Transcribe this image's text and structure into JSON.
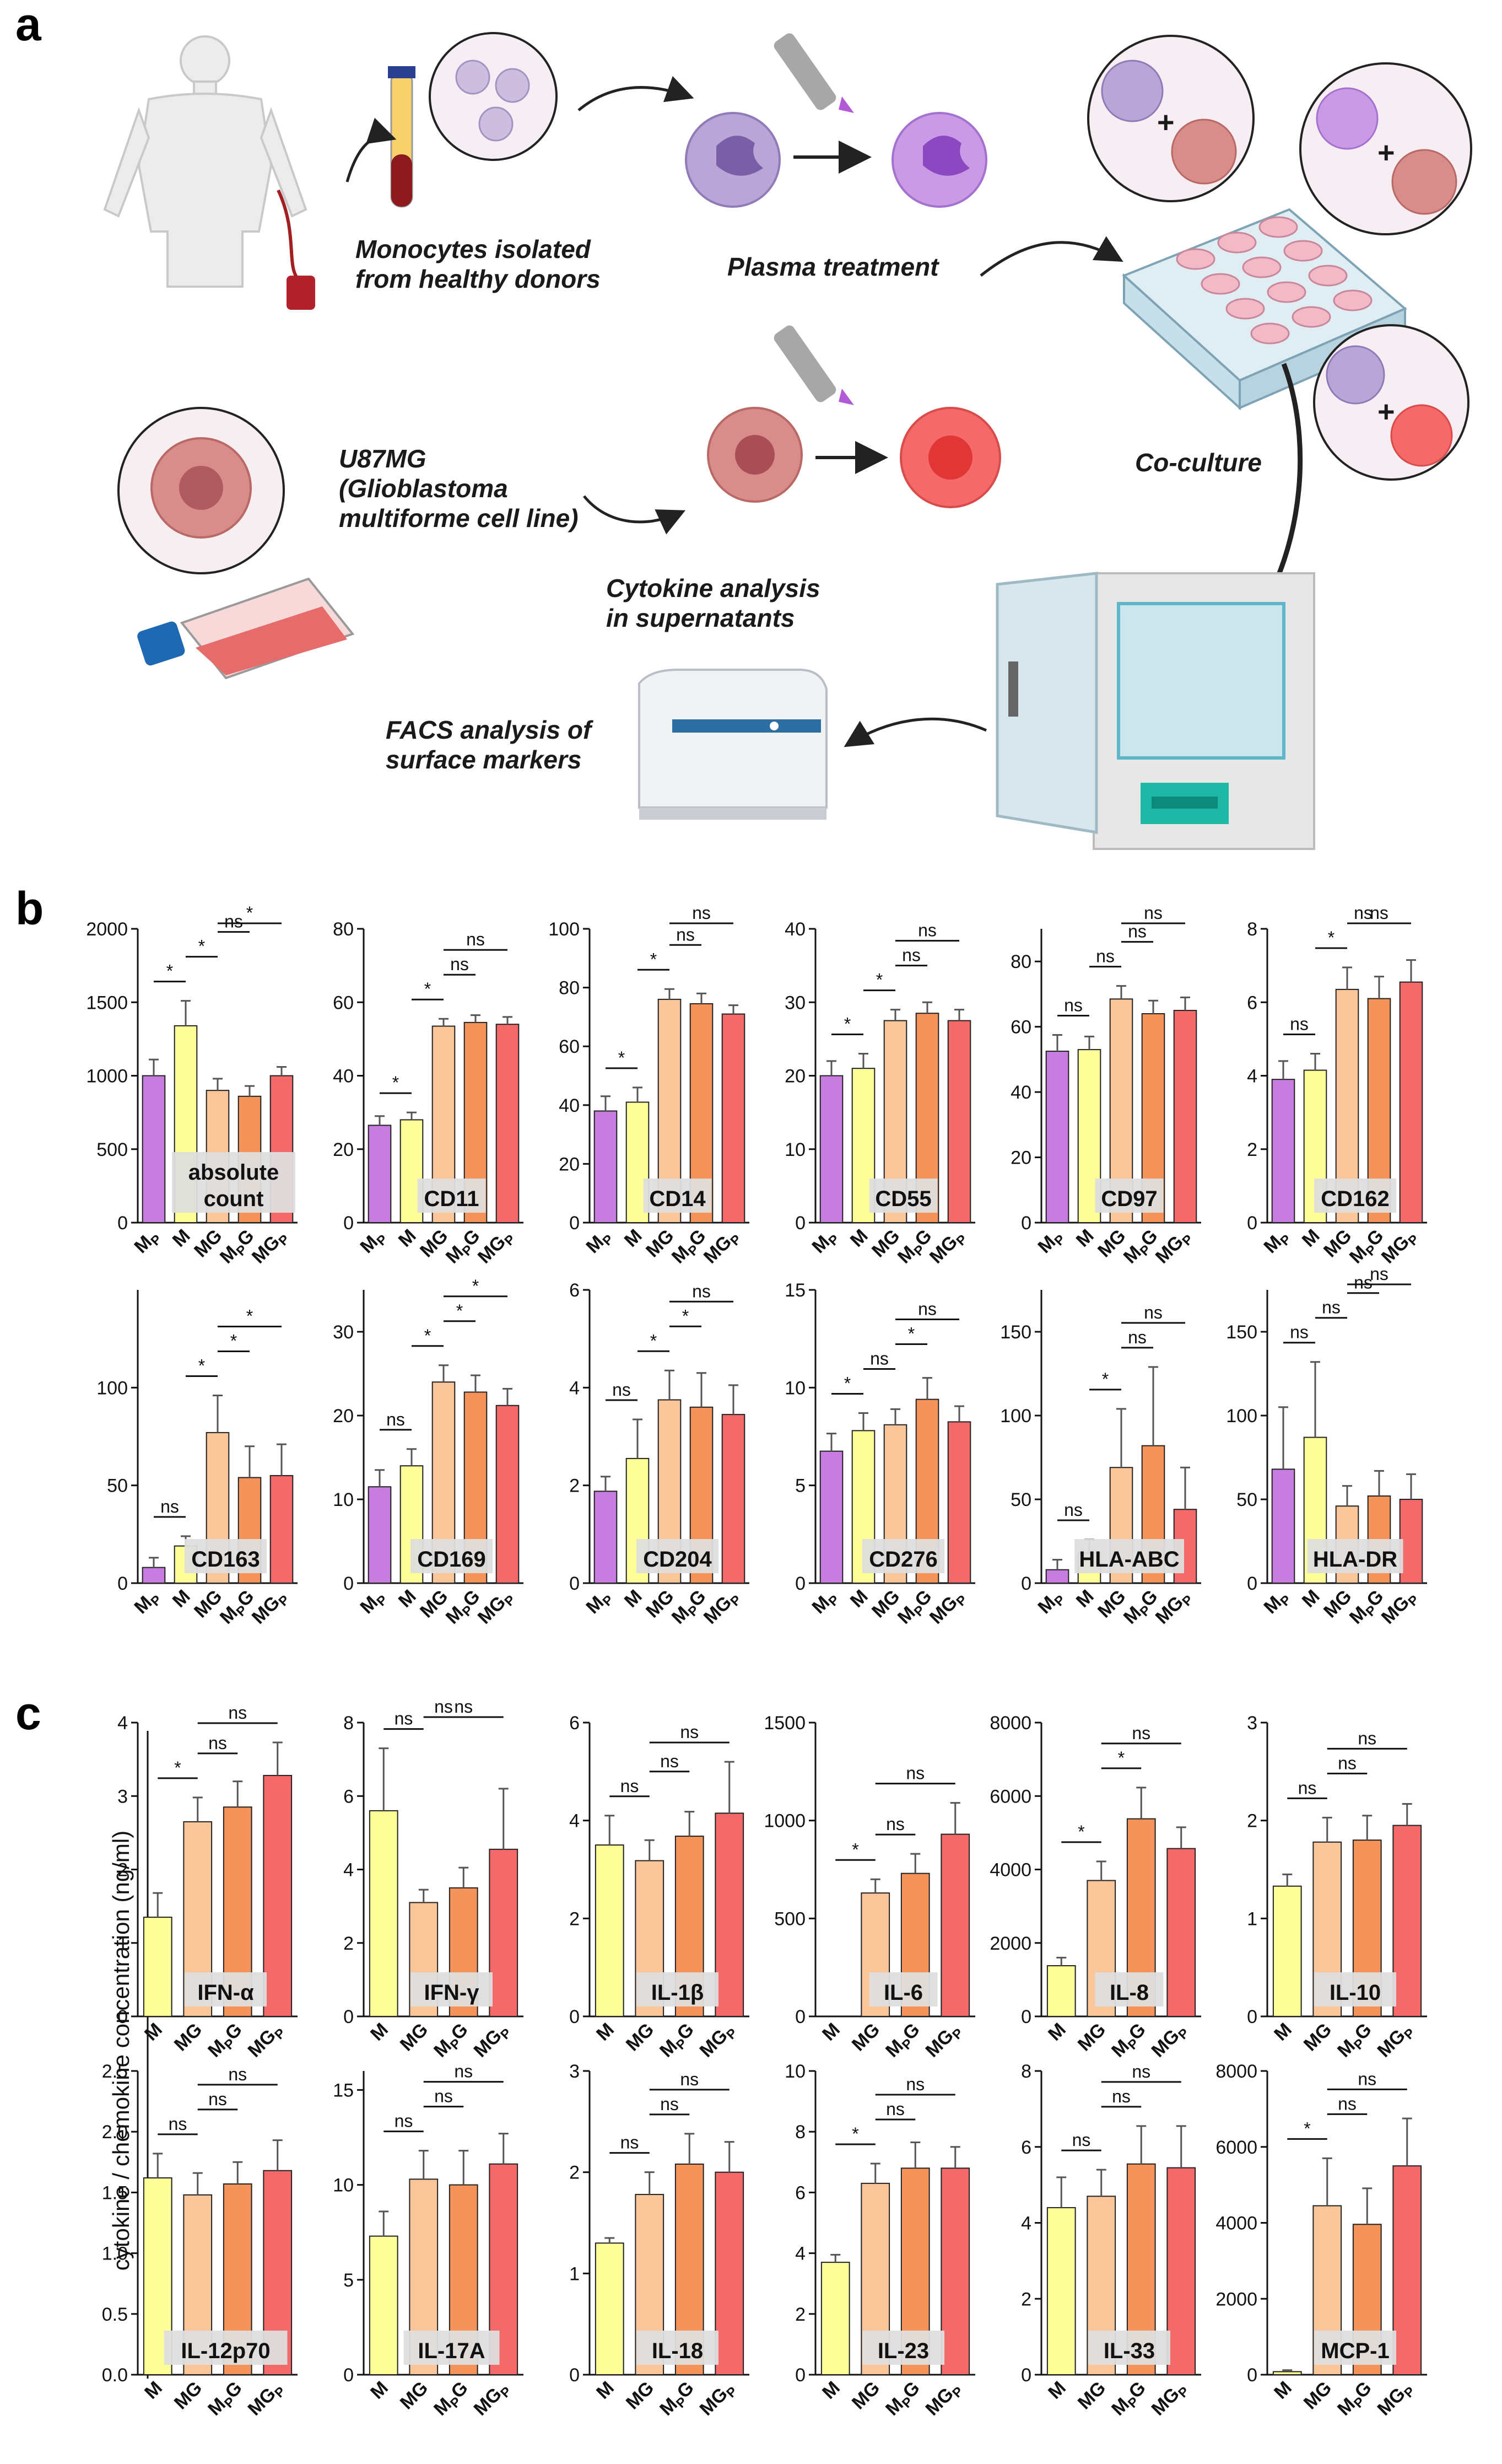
{
  "panel_labels": {
    "a": "a",
    "b": "b",
    "c": "c"
  },
  "schematic": {
    "monocytes": [
      "Monocytes isolated",
      "from healthy donors"
    ],
    "plasma": "Plasma treatment",
    "coculture": "Co-culture",
    "u87": [
      "U87MG",
      "(Glioblastoma",
      "multiforme cell line)"
    ],
    "cytokine": [
      "Cytokine analysis",
      "in supernatants"
    ],
    "facs": [
      "FACS analysis of",
      "surface markers"
    ],
    "plus": "+"
  },
  "colors": {
    "MP": "#c77de0",
    "M": "#ffff99",
    "MG": "#fbc59a",
    "MPG": "#f4935a",
    "MGP": "#f46a6a"
  },
  "cytokine_ylabel": "cytokine / chemokine concentration (ng/ml)",
  "chart_data": [
    {
      "type": "bar",
      "label": "absolute\ncount",
      "label_pos": "bottom-center",
      "categories": [
        "MP",
        "M",
        "MG",
        "MPG",
        "MGP"
      ],
      "tick_labels": [
        "0",
        "500",
        "1000",
        "1500",
        "2000"
      ],
      "ylim": [
        0,
        2000
      ],
      "values": [
        1000,
        1340,
        900,
        860,
        1000
      ],
      "errors": [
        110,
        170,
        80,
        70,
        60
      ],
      "sig": [
        {
          "a": 0,
          "b": 1,
          "t": "*"
        },
        {
          "a": 1,
          "b": 2,
          "t": "*"
        },
        {
          "a": 2,
          "b": 3,
          "t": "ns"
        },
        {
          "a": 2,
          "b": 4,
          "t": "*"
        }
      ]
    },
    {
      "type": "bar",
      "label": "CD11",
      "categories": [
        "MP",
        "M",
        "MG",
        "MPG",
        "MGP"
      ],
      "tick_labels": [
        "0",
        "20",
        "40",
        "60",
        "80"
      ],
      "ylim": [
        0,
        80
      ],
      "values": [
        26.5,
        28,
        53.5,
        54.5,
        54
      ],
      "errors": [
        2.5,
        2,
        2,
        2,
        2
      ],
      "sig": [
        {
          "a": 0,
          "b": 1,
          "t": "*"
        },
        {
          "a": 1,
          "b": 2,
          "t": "*"
        },
        {
          "a": 2,
          "b": 3,
          "t": "ns"
        },
        {
          "a": 2,
          "b": 4,
          "t": "ns"
        }
      ]
    },
    {
      "type": "bar",
      "label": "CD14",
      "categories": [
        "MP",
        "M",
        "MG",
        "MPG",
        "MGP"
      ],
      "tick_labels": [
        "0",
        "20",
        "40",
        "60",
        "80",
        "100"
      ],
      "ylim": [
        0,
        100
      ],
      "values": [
        38,
        41,
        76,
        74.5,
        71
      ],
      "errors": [
        5,
        5,
        3.5,
        3.5,
        3
      ],
      "sig": [
        {
          "a": 0,
          "b": 1,
          "t": "*"
        },
        {
          "a": 1,
          "b": 2,
          "t": "*"
        },
        {
          "a": 2,
          "b": 3,
          "t": "ns"
        },
        {
          "a": 2,
          "b": 4,
          "t": "ns"
        }
      ]
    },
    {
      "type": "bar",
      "label": "CD55",
      "categories": [
        "MP",
        "M",
        "MG",
        "MPG",
        "MGP"
      ],
      "tick_labels": [
        "0",
        "10",
        "20",
        "30",
        "40"
      ],
      "ylim": [
        0,
        40
      ],
      "values": [
        20,
        21,
        27.5,
        28.5,
        27.5
      ],
      "errors": [
        2,
        2,
        1.5,
        1.5,
        1.5
      ],
      "sig": [
        {
          "a": 0,
          "b": 1,
          "t": "*"
        },
        {
          "a": 1,
          "b": 2,
          "t": "*"
        },
        {
          "a": 2,
          "b": 3,
          "t": "ns"
        },
        {
          "a": 2,
          "b": 4,
          "t": "ns"
        }
      ]
    },
    {
      "type": "bar",
      "label": "CD97",
      "categories": [
        "MP",
        "M",
        "MG",
        "MPG",
        "MGP"
      ],
      "tick_labels": [
        "0",
        "20",
        "40",
        "60",
        "80"
      ],
      "ylim": [
        0,
        90
      ],
      "values": [
        52.5,
        53,
        68.5,
        64,
        65
      ],
      "errors": [
        5,
        4,
        4,
        4,
        4
      ],
      "sig": [
        {
          "a": 0,
          "b": 1,
          "t": "ns"
        },
        {
          "a": 1,
          "b": 2,
          "t": "ns"
        },
        {
          "a": 2,
          "b": 3,
          "t": "ns"
        },
        {
          "a": 2,
          "b": 4,
          "t": "ns"
        }
      ]
    },
    {
      "type": "bar",
      "label": "CD162",
      "categories": [
        "MP",
        "M",
        "MG",
        "MPG",
        "MGP"
      ],
      "tick_labels": [
        "0",
        "2",
        "4",
        "6",
        "8"
      ],
      "ylim": [
        0,
        8
      ],
      "values": [
        3.9,
        4.15,
        6.35,
        6.1,
        6.55
      ],
      "errors": [
        0.5,
        0.45,
        0.6,
        0.6,
        0.6
      ],
      "sig": [
        {
          "a": 0,
          "b": 1,
          "t": "ns"
        },
        {
          "a": 1,
          "b": 2,
          "t": "*"
        },
        {
          "a": 2,
          "b": 3,
          "t": "ns"
        },
        {
          "a": 2,
          "b": 4,
          "t": "ns"
        }
      ]
    },
    {
      "type": "bar",
      "label": "CD163",
      "categories": [
        "MP",
        "M",
        "MG",
        "MPG",
        "MGP"
      ],
      "tick_labels": [
        "0",
        "50",
        "100"
      ],
      "ylim": [
        0,
        150
      ],
      "values": [
        8,
        19,
        77,
        54,
        55
      ],
      "errors": [
        5,
        5,
        19,
        16,
        16
      ],
      "sig": [
        {
          "a": 0,
          "b": 1,
          "t": "ns"
        },
        {
          "a": 1,
          "b": 2,
          "t": "*"
        },
        {
          "a": 2,
          "b": 3,
          "t": "*"
        },
        {
          "a": 2,
          "b": 4,
          "t": "*"
        }
      ]
    },
    {
      "type": "bar",
      "label": "CD169",
      "categories": [
        "MP",
        "M",
        "MG",
        "MPG",
        "MGP"
      ],
      "tick_labels": [
        "0",
        "10",
        "20",
        "30"
      ],
      "ylim": [
        0,
        35
      ],
      "values": [
        11.5,
        14,
        24,
        22.8,
        21.2
      ],
      "errors": [
        2,
        2,
        2,
        2,
        2
      ],
      "sig": [
        {
          "a": 0,
          "b": 1,
          "t": "ns"
        },
        {
          "a": 1,
          "b": 2,
          "t": "*"
        },
        {
          "a": 2,
          "b": 3,
          "t": "*"
        },
        {
          "a": 2,
          "b": 4,
          "t": "*"
        }
      ]
    },
    {
      "type": "bar",
      "label": "CD204",
      "categories": [
        "MP",
        "M",
        "MG",
        "MPG",
        "MGP"
      ],
      "tick_labels": [
        "0",
        "2",
        "4",
        "6"
      ],
      "ylim": [
        0,
        6
      ],
      "values": [
        1.88,
        2.55,
        3.75,
        3.6,
        3.45
      ],
      "errors": [
        0.3,
        0.8,
        0.6,
        0.7,
        0.6
      ],
      "sig": [
        {
          "a": 0,
          "b": 1,
          "t": "ns"
        },
        {
          "a": 1,
          "b": 2,
          "t": "*"
        },
        {
          "a": 2,
          "b": 3,
          "t": "*"
        },
        {
          "a": 2,
          "b": 4,
          "t": "ns"
        }
      ]
    },
    {
      "type": "bar",
      "label": "CD276",
      "categories": [
        "MP",
        "M",
        "MG",
        "MPG",
        "MGP"
      ],
      "tick_labels": [
        "0",
        "5",
        "10",
        "15"
      ],
      "ylim": [
        0,
        15
      ],
      "values": [
        6.75,
        7.8,
        8.1,
        9.4,
        8.25
      ],
      "errors": [
        0.9,
        0.9,
        0.8,
        1.1,
        0.8
      ],
      "sig": [
        {
          "a": 0,
          "b": 1,
          "t": "*"
        },
        {
          "a": 1,
          "b": 2,
          "t": "ns"
        },
        {
          "a": 2,
          "b": 3,
          "t": "*"
        },
        {
          "a": 2,
          "b": 4,
          "t": "ns"
        }
      ]
    },
    {
      "type": "bar",
      "label": "HLA-ABC",
      "categories": [
        "MP",
        "M",
        "MG",
        "MPG",
        "MGP"
      ],
      "tick_labels": [
        "0",
        "50",
        "100",
        "150"
      ],
      "ylim": [
        0,
        175
      ],
      "values": [
        8,
        18,
        69,
        82,
        44
      ],
      "errors": [
        6,
        8,
        35,
        47,
        25
      ],
      "sig": [
        {
          "a": 0,
          "b": 1,
          "t": "ns"
        },
        {
          "a": 1,
          "b": 2,
          "t": "*"
        },
        {
          "a": 2,
          "b": 3,
          "t": "ns"
        },
        {
          "a": 2,
          "b": 4,
          "t": "ns"
        }
      ]
    },
    {
      "type": "bar",
      "label": "HLA-DR",
      "categories": [
        "MP",
        "M",
        "MG",
        "MPG",
        "MGP"
      ],
      "tick_labels": [
        "0",
        "50",
        "100",
        "150"
      ],
      "ylim": [
        0,
        175
      ],
      "values": [
        68,
        87,
        46,
        52,
        50
      ],
      "errors": [
        37,
        45,
        12,
        15,
        15
      ],
      "sig": [
        {
          "a": 0,
          "b": 1,
          "t": "ns"
        },
        {
          "a": 1,
          "b": 2,
          "t": "ns"
        },
        {
          "a": 2,
          "b": 3,
          "t": "ns"
        },
        {
          "a": 2,
          "b": 4,
          "t": "ns"
        }
      ]
    },
    {
      "type": "bar",
      "label": "IFN-α",
      "categories": [
        "M",
        "MG",
        "MPG",
        "MGP"
      ],
      "tick_labels": [
        "0",
        "1",
        "2",
        "3",
        "4"
      ],
      "ylim": [
        0,
        4
      ],
      "values": [
        1.35,
        2.65,
        2.85,
        3.28
      ],
      "errors": [
        0.33,
        0.33,
        0.35,
        0.45
      ],
      "sig": [
        {
          "a": 0,
          "b": 1,
          "t": "*"
        },
        {
          "a": 1,
          "b": 2,
          "t": "ns"
        },
        {
          "a": 1,
          "b": 3,
          "t": "ns"
        }
      ]
    },
    {
      "type": "bar",
      "label": "IFN-γ",
      "categories": [
        "M",
        "MG",
        "MPG",
        "MGP"
      ],
      "tick_labels": [
        "0",
        "2",
        "4",
        "6",
        "8"
      ],
      "ylim": [
        0,
        8
      ],
      "values": [
        5.6,
        3.1,
        3.5,
        4.55
      ],
      "errors": [
        1.7,
        0.35,
        0.55,
        1.65
      ],
      "sig": [
        {
          "a": 0,
          "b": 1,
          "t": "ns"
        },
        {
          "a": 1,
          "b": 2,
          "t": "ns"
        },
        {
          "a": 1,
          "b": 3,
          "t": "ns"
        }
      ]
    },
    {
      "type": "bar",
      "label": "IL-1β",
      "categories": [
        "M",
        "MG",
        "MPG",
        "MGP"
      ],
      "tick_labels": [
        "0",
        "2",
        "4",
        "6"
      ],
      "ylim": [
        0,
        6
      ],
      "values": [
        3.5,
        3.18,
        3.68,
        4.15
      ],
      "errors": [
        0.6,
        0.42,
        0.5,
        1.05
      ],
      "sig": [
        {
          "a": 0,
          "b": 1,
          "t": "ns"
        },
        {
          "a": 1,
          "b": 2,
          "t": "ns"
        },
        {
          "a": 1,
          "b": 3,
          "t": "ns"
        }
      ]
    },
    {
      "type": "bar",
      "label": "IL-6",
      "categories": [
        "M",
        "MG",
        "MPG",
        "MGP"
      ],
      "tick_labels": [
        "0",
        "500",
        "1000",
        "1500"
      ],
      "ylim": [
        0,
        1500
      ],
      "values": [
        0,
        630,
        730,
        930
      ],
      "errors": [
        0,
        70,
        100,
        160
      ],
      "sig": [
        {
          "a": 0,
          "b": 1,
          "t": "*"
        },
        {
          "a": 1,
          "b": 2,
          "t": "ns"
        },
        {
          "a": 1,
          "b": 3,
          "t": "ns"
        }
      ]
    },
    {
      "type": "bar",
      "label": "IL-8",
      "categories": [
        "M",
        "MG",
        "MPG",
        "MGP"
      ],
      "tick_labels": [
        "0",
        "2000",
        "4000",
        "6000",
        "8000"
      ],
      "ylim": [
        0,
        8000
      ],
      "values": [
        1380,
        3700,
        5380,
        4570
      ],
      "errors": [
        220,
        520,
        850,
        580
      ],
      "sig": [
        {
          "a": 0,
          "b": 1,
          "t": "*"
        },
        {
          "a": 1,
          "b": 2,
          "t": "*"
        },
        {
          "a": 1,
          "b": 3,
          "t": "ns"
        }
      ]
    },
    {
      "type": "bar",
      "label": "IL-10",
      "categories": [
        "M",
        "MG",
        "MPG",
        "MGP"
      ],
      "tick_labels": [
        "0",
        "1",
        "2",
        "3"
      ],
      "ylim": [
        0,
        3
      ],
      "values": [
        1.33,
        1.78,
        1.8,
        1.95
      ],
      "errors": [
        0.12,
        0.25,
        0.25,
        0.22
      ],
      "sig": [
        {
          "a": 0,
          "b": 1,
          "t": "ns"
        },
        {
          "a": 1,
          "b": 2,
          "t": "ns"
        },
        {
          "a": 1,
          "b": 3,
          "t": "ns"
        }
      ]
    },
    {
      "type": "bar",
      "label": "IL-12p70",
      "categories": [
        "M",
        "MG",
        "MPG",
        "MGP"
      ],
      "tick_labels": [
        "0.0",
        "0.5",
        "1.0",
        "1.5",
        "2.0",
        "2.5"
      ],
      "ylim": [
        0,
        2.5
      ],
      "values": [
        1.62,
        1.48,
        1.57,
        1.68
      ],
      "errors": [
        0.2,
        0.18,
        0.18,
        0.25
      ],
      "sig": [
        {
          "a": 0,
          "b": 1,
          "t": "ns"
        },
        {
          "a": 1,
          "b": 2,
          "t": "ns"
        },
        {
          "a": 1,
          "b": 3,
          "t": "ns"
        }
      ]
    },
    {
      "type": "bar",
      "label": "IL-17A",
      "categories": [
        "M",
        "MG",
        "MPG",
        "MGP"
      ],
      "tick_labels": [
        "0",
        "5",
        "10",
        "15"
      ],
      "ylim": [
        0,
        16
      ],
      "values": [
        7.3,
        10.3,
        10,
        11.1
      ],
      "errors": [
        1.3,
        1.5,
        1.8,
        1.6
      ],
      "sig": [
        {
          "a": 0,
          "b": 1,
          "t": "ns"
        },
        {
          "a": 1,
          "b": 2,
          "t": "ns"
        },
        {
          "a": 1,
          "b": 3,
          "t": "ns"
        }
      ]
    },
    {
      "type": "bar",
      "label": "IL-18",
      "categories": [
        "M",
        "MG",
        "MPG",
        "MGP"
      ],
      "tick_labels": [
        "0",
        "1",
        "2",
        "3"
      ],
      "ylim": [
        0,
        3
      ],
      "values": [
        1.3,
        1.78,
        2.08,
        2.0
      ],
      "errors": [
        0.05,
        0.22,
        0.3,
        0.3
      ],
      "sig": [
        {
          "a": 0,
          "b": 1,
          "t": "ns"
        },
        {
          "a": 1,
          "b": 2,
          "t": "ns"
        },
        {
          "a": 1,
          "b": 3,
          "t": "ns"
        }
      ]
    },
    {
      "type": "bar",
      "label": "IL-23",
      "categories": [
        "M",
        "MG",
        "MPG",
        "MGP"
      ],
      "tick_labels": [
        "0",
        "2",
        "4",
        "6",
        "8",
        "10"
      ],
      "ylim": [
        0,
        10
      ],
      "values": [
        3.7,
        6.3,
        6.8,
        6.8
      ],
      "errors": [
        0.25,
        0.65,
        0.85,
        0.7
      ],
      "sig": [
        {
          "a": 0,
          "b": 1,
          "t": "*"
        },
        {
          "a": 1,
          "b": 2,
          "t": "ns"
        },
        {
          "a": 1,
          "b": 3,
          "t": "ns"
        }
      ]
    },
    {
      "type": "bar",
      "label": "IL-33",
      "categories": [
        "M",
        "MG",
        "MPG",
        "MGP"
      ],
      "tick_labels": [
        "0",
        "2",
        "4",
        "6",
        "8"
      ],
      "ylim": [
        0,
        8
      ],
      "values": [
        4.4,
        4.7,
        5.55,
        5.45
      ],
      "errors": [
        0.8,
        0.7,
        1.0,
        1.1
      ],
      "sig": [
        {
          "a": 0,
          "b": 1,
          "t": "ns"
        },
        {
          "a": 1,
          "b": 2,
          "t": "ns"
        },
        {
          "a": 1,
          "b": 3,
          "t": "ns"
        }
      ]
    },
    {
      "type": "bar",
      "label": "MCP-1",
      "categories": [
        "M",
        "MG",
        "MPG",
        "MGP"
      ],
      "tick_labels": [
        "0",
        "2000",
        "4000",
        "6000",
        "8000"
      ],
      "ylim": [
        0,
        8000
      ],
      "values": [
        80,
        4450,
        3960,
        5500
      ],
      "errors": [
        40,
        1250,
        950,
        1250
      ],
      "sig": [
        {
          "a": 0,
          "b": 1,
          "t": "*"
        },
        {
          "a": 1,
          "b": 2,
          "t": "ns"
        },
        {
          "a": 1,
          "b": 3,
          "t": "ns"
        }
      ]
    }
  ]
}
